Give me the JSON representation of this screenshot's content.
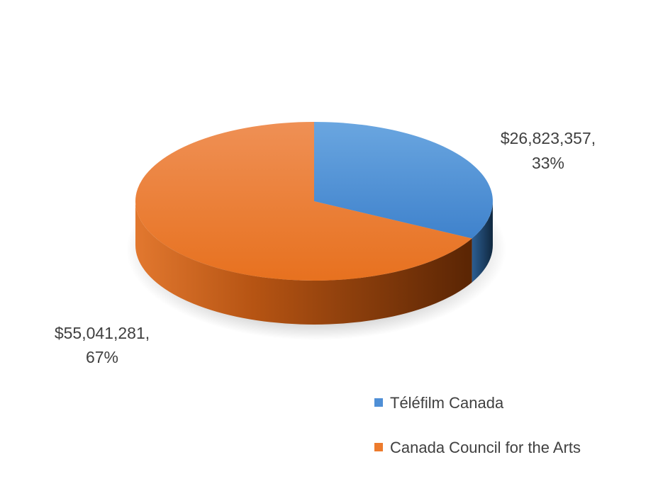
{
  "chart_data": {
    "type": "pie",
    "style": "3d",
    "categories": [
      "Téléfilm Canada",
      "Canada Council for the Arts"
    ],
    "values": [
      26823357,
      55041281
    ],
    "labels": [
      [
        "$26,823,357,",
        "33%"
      ],
      [
        "$55,041,281,",
        "67%"
      ]
    ],
    "colors": [
      "#4f8fd6",
      "#ed7b2d"
    ],
    "legend": {
      "placement": "bottom-right",
      "entries": [
        "Téléfilm Canada",
        "Canada Council for the Arts"
      ]
    }
  }
}
